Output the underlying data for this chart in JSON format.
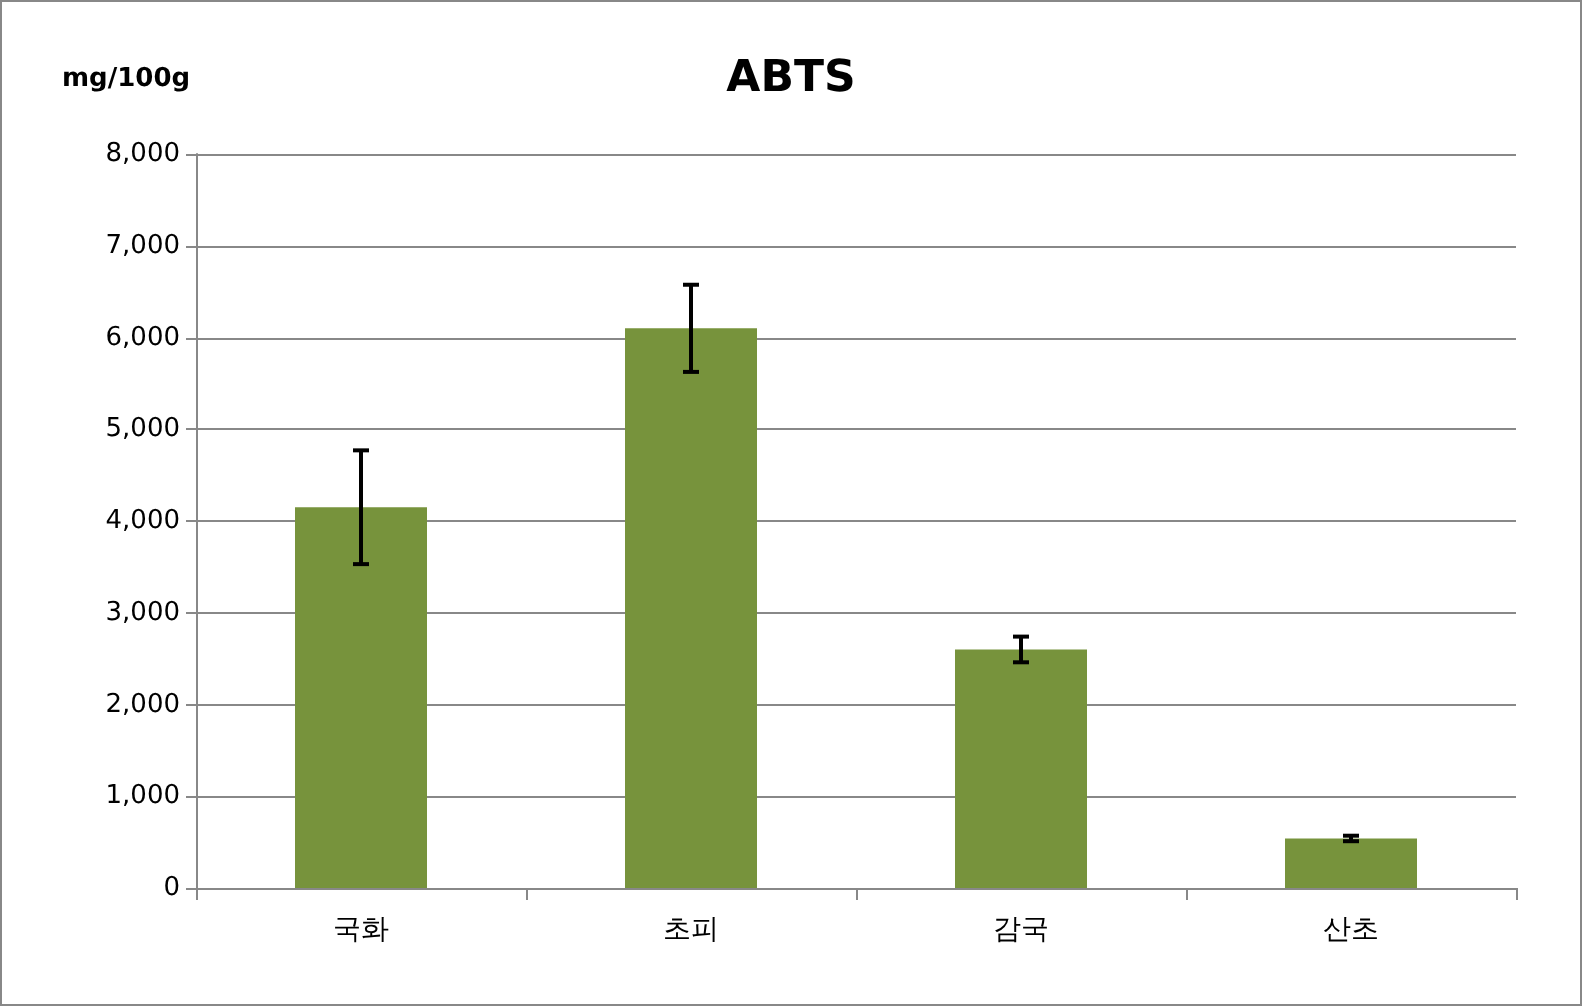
{
  "chart_data": {
    "type": "bar",
    "title": "ABTS",
    "ylabel": "mg/100g",
    "categories": [
      "국화",
      "초피",
      "감국",
      "산초"
    ],
    "values": [
      4150,
      6100,
      2600,
      540
    ],
    "errors": [
      620,
      475,
      140,
      30
    ],
    "color": "#77933c",
    "ylim": [
      0,
      8000
    ],
    "yticks": [
      0,
      {
        "value": 1000,
        "label": "1,000"
      },
      {
        "value": 2000,
        "label": "2,000"
      },
      {
        "value": 3000,
        "label": "3,000"
      },
      {
        "value": 4000,
        "label": "4,000"
      },
      {
        "value": 5000,
        "label": "5,000"
      },
      {
        "value": 6000,
        "label": "6,000"
      },
      {
        "value": 7000,
        "label": "7,000"
      },
      {
        "value": 8000,
        "label": "8,000"
      }
    ],
    "grid": "y"
  }
}
